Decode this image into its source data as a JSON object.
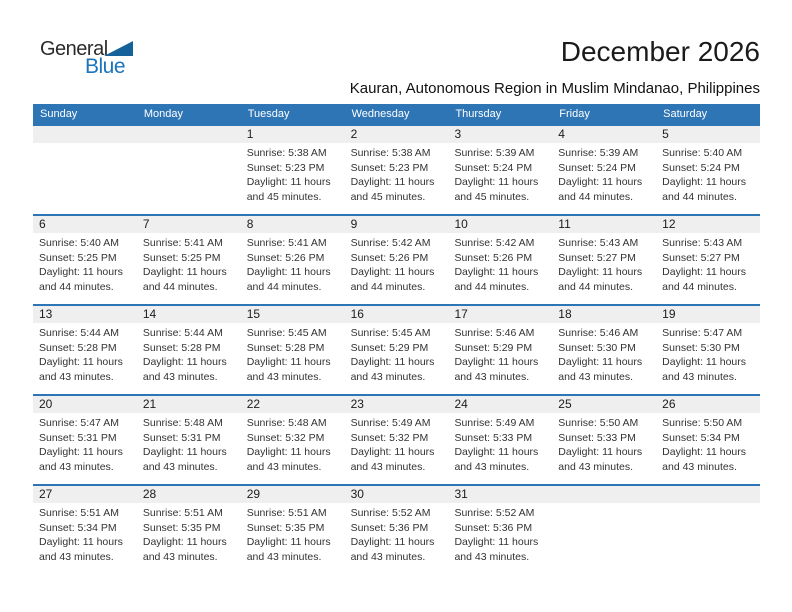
{
  "logo": {
    "line1": "General",
    "line2": "Blue"
  },
  "header": {
    "title": "December 2026",
    "subtitle": "Kauran, Autonomous Region in Muslim Mindanao, Philippines"
  },
  "colors": {
    "header_blue": "#2e75b6",
    "band_gray": "#efefef",
    "logo_text_blue": "#1b75bc",
    "logo_triangle_blue": "#15629b"
  },
  "calendar": {
    "weekdays": [
      "Sunday",
      "Monday",
      "Tuesday",
      "Wednesday",
      "Thursday",
      "Friday",
      "Saturday"
    ],
    "weeks": [
      {
        "cells": [
          {},
          {},
          {
            "day": "1",
            "lines": [
              "Sunrise: 5:38 AM",
              "Sunset: 5:23 PM",
              "Daylight: 11 hours",
              "and 45 minutes."
            ]
          },
          {
            "day": "2",
            "lines": [
              "Sunrise: 5:38 AM",
              "Sunset: 5:23 PM",
              "Daylight: 11 hours",
              "and 45 minutes."
            ]
          },
          {
            "day": "3",
            "lines": [
              "Sunrise: 5:39 AM",
              "Sunset: 5:24 PM",
              "Daylight: 11 hours",
              "and 45 minutes."
            ]
          },
          {
            "day": "4",
            "lines": [
              "Sunrise: 5:39 AM",
              "Sunset: 5:24 PM",
              "Daylight: 11 hours",
              "and 44 minutes."
            ]
          },
          {
            "day": "5",
            "lines": [
              "Sunrise: 5:40 AM",
              "Sunset: 5:24 PM",
              "Daylight: 11 hours",
              "and 44 minutes."
            ]
          }
        ]
      },
      {
        "cells": [
          {
            "day": "6",
            "lines": [
              "Sunrise: 5:40 AM",
              "Sunset: 5:25 PM",
              "Daylight: 11 hours",
              "and 44 minutes."
            ]
          },
          {
            "day": "7",
            "lines": [
              "Sunrise: 5:41 AM",
              "Sunset: 5:25 PM",
              "Daylight: 11 hours",
              "and 44 minutes."
            ]
          },
          {
            "day": "8",
            "lines": [
              "Sunrise: 5:41 AM",
              "Sunset: 5:26 PM",
              "Daylight: 11 hours",
              "and 44 minutes."
            ]
          },
          {
            "day": "9",
            "lines": [
              "Sunrise: 5:42 AM",
              "Sunset: 5:26 PM",
              "Daylight: 11 hours",
              "and 44 minutes."
            ]
          },
          {
            "day": "10",
            "lines": [
              "Sunrise: 5:42 AM",
              "Sunset: 5:26 PM",
              "Daylight: 11 hours",
              "and 44 minutes."
            ]
          },
          {
            "day": "11",
            "lines": [
              "Sunrise: 5:43 AM",
              "Sunset: 5:27 PM",
              "Daylight: 11 hours",
              "and 44 minutes."
            ]
          },
          {
            "day": "12",
            "lines": [
              "Sunrise: 5:43 AM",
              "Sunset: 5:27 PM",
              "Daylight: 11 hours",
              "and 44 minutes."
            ]
          }
        ]
      },
      {
        "cells": [
          {
            "day": "13",
            "lines": [
              "Sunrise: 5:44 AM",
              "Sunset: 5:28 PM",
              "Daylight: 11 hours",
              "and 43 minutes."
            ]
          },
          {
            "day": "14",
            "lines": [
              "Sunrise: 5:44 AM",
              "Sunset: 5:28 PM",
              "Daylight: 11 hours",
              "and 43 minutes."
            ]
          },
          {
            "day": "15",
            "lines": [
              "Sunrise: 5:45 AM",
              "Sunset: 5:28 PM",
              "Daylight: 11 hours",
              "and 43 minutes."
            ]
          },
          {
            "day": "16",
            "lines": [
              "Sunrise: 5:45 AM",
              "Sunset: 5:29 PM",
              "Daylight: 11 hours",
              "and 43 minutes."
            ]
          },
          {
            "day": "17",
            "lines": [
              "Sunrise: 5:46 AM",
              "Sunset: 5:29 PM",
              "Daylight: 11 hours",
              "and 43 minutes."
            ]
          },
          {
            "day": "18",
            "lines": [
              "Sunrise: 5:46 AM",
              "Sunset: 5:30 PM",
              "Daylight: 11 hours",
              "and 43 minutes."
            ]
          },
          {
            "day": "19",
            "lines": [
              "Sunrise: 5:47 AM",
              "Sunset: 5:30 PM",
              "Daylight: 11 hours",
              "and 43 minutes."
            ]
          }
        ]
      },
      {
        "cells": [
          {
            "day": "20",
            "lines": [
              "Sunrise: 5:47 AM",
              "Sunset: 5:31 PM",
              "Daylight: 11 hours",
              "and 43 minutes."
            ]
          },
          {
            "day": "21",
            "lines": [
              "Sunrise: 5:48 AM",
              "Sunset: 5:31 PM",
              "Daylight: 11 hours",
              "and 43 minutes."
            ]
          },
          {
            "day": "22",
            "lines": [
              "Sunrise: 5:48 AM",
              "Sunset: 5:32 PM",
              "Daylight: 11 hours",
              "and 43 minutes."
            ]
          },
          {
            "day": "23",
            "lines": [
              "Sunrise: 5:49 AM",
              "Sunset: 5:32 PM",
              "Daylight: 11 hours",
              "and 43 minutes."
            ]
          },
          {
            "day": "24",
            "lines": [
              "Sunrise: 5:49 AM",
              "Sunset: 5:33 PM",
              "Daylight: 11 hours",
              "and 43 minutes."
            ]
          },
          {
            "day": "25",
            "lines": [
              "Sunrise: 5:50 AM",
              "Sunset: 5:33 PM",
              "Daylight: 11 hours",
              "and 43 minutes."
            ]
          },
          {
            "day": "26",
            "lines": [
              "Sunrise: 5:50 AM",
              "Sunset: 5:34 PM",
              "Daylight: 11 hours",
              "and 43 minutes."
            ]
          }
        ]
      },
      {
        "cells": [
          {
            "day": "27",
            "lines": [
              "Sunrise: 5:51 AM",
              "Sunset: 5:34 PM",
              "Daylight: 11 hours",
              "and 43 minutes."
            ]
          },
          {
            "day": "28",
            "lines": [
              "Sunrise: 5:51 AM",
              "Sunset: 5:35 PM",
              "Daylight: 11 hours",
              "and 43 minutes."
            ]
          },
          {
            "day": "29",
            "lines": [
              "Sunrise: 5:51 AM",
              "Sunset: 5:35 PM",
              "Daylight: 11 hours",
              "and 43 minutes."
            ]
          },
          {
            "day": "30",
            "lines": [
              "Sunrise: 5:52 AM",
              "Sunset: 5:36 PM",
              "Daylight: 11 hours",
              "and 43 minutes."
            ]
          },
          {
            "day": "31",
            "lines": [
              "Sunrise: 5:52 AM",
              "Sunset: 5:36 PM",
              "Daylight: 11 hours",
              "and 43 minutes."
            ]
          },
          {},
          {}
        ]
      }
    ]
  }
}
